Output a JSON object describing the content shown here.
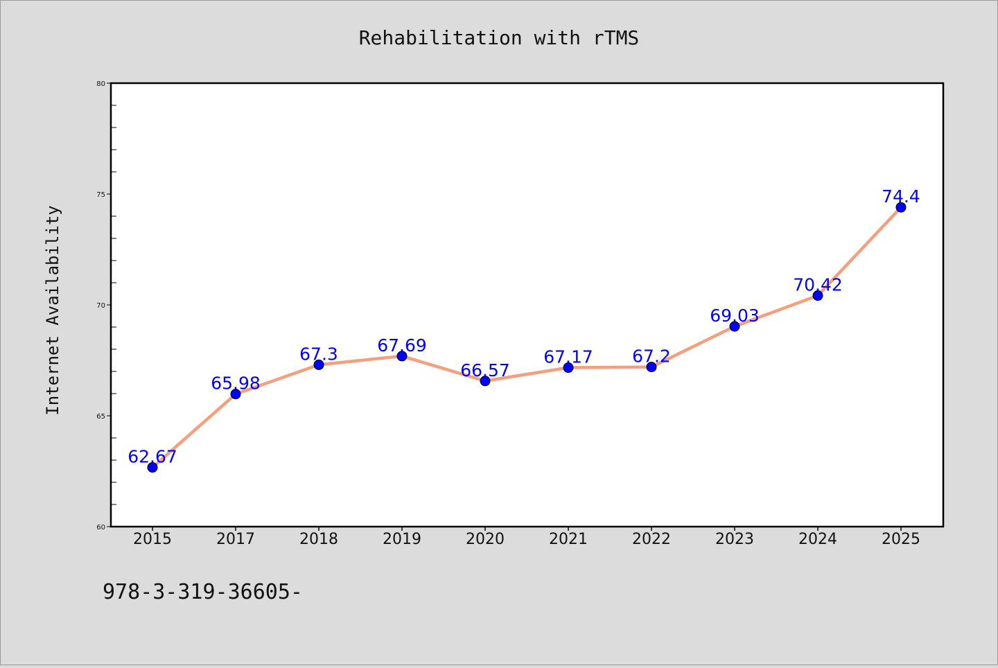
{
  "chart_data": {
    "type": "line",
    "title": "Rehabilitation with rTMS",
    "xlabel": "",
    "ylabel": "Internet Availability",
    "categories": [
      "2015",
      "2017",
      "2018",
      "2019",
      "2020",
      "2021",
      "2022",
      "2023",
      "2024",
      "2025"
    ],
    "series": [
      {
        "values": [
          62.67,
          65.98,
          67.3,
          67.69,
          66.57,
          67.17,
          67.2,
          69.03,
          70.42,
          74.4
        ],
        "labels": [
          "62.67",
          "65.98",
          "67.3",
          "67.69",
          "66.57",
          "67.17",
          "67.2",
          "69.03",
          "70.42",
          "74.4"
        ],
        "line_color": "#f4a07e",
        "marker_color": "#0000ff"
      }
    ],
    "ylim": [
      60,
      80
    ],
    "yticks": [
      "60",
      "65",
      "70",
      "75",
      "80"
    ],
    "grid": false,
    "legend": "none",
    "background": "#dcdcdc",
    "plot_background": "#ffffff",
    "data_label_color": "#0000ff"
  },
  "footnote": "978-3-319-36605-"
}
